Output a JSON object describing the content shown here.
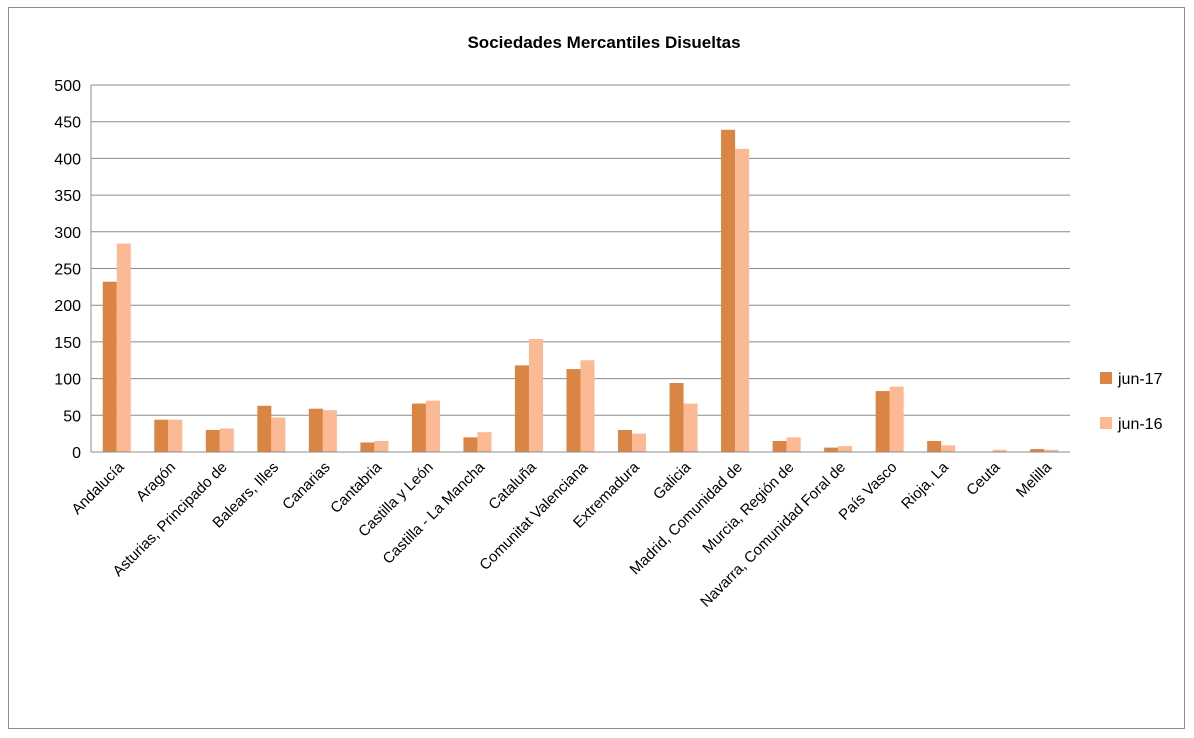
{
  "chart_data": {
    "type": "bar",
    "title": "Sociedades Mercantiles Disueltas",
    "xlabel": "",
    "ylabel": "",
    "ylim": [
      0,
      500
    ],
    "yticks": [
      0,
      50,
      100,
      150,
      200,
      250,
      300,
      350,
      400,
      450,
      500
    ],
    "grid": true,
    "legend_position": "right",
    "categories": [
      "Andalucía",
      "Aragón",
      "Asturias, Principado de",
      "Balears, Illes",
      "Canarias",
      "Cantabria",
      "Castilla y León",
      "Castilla - La Mancha",
      "Cataluña",
      "Comunitat Valenciana",
      "Extremadura",
      "Galicia",
      "Madrid, Comunidad de",
      "Murcia, Región de",
      "Navarra, Comunidad Foral de",
      "País Vasco",
      "Rioja, La",
      "Ceuta",
      "Melilla"
    ],
    "series": [
      {
        "name": "jun-17",
        "color": "#DA8544",
        "values": [
          232,
          44,
          30,
          63,
          59,
          13,
          66,
          20,
          118,
          113,
          30,
          94,
          439,
          15,
          6,
          83,
          15,
          0,
          4
        ]
      },
      {
        "name": "jun-16",
        "color": "#FBB994",
        "values": [
          284,
          44,
          32,
          47,
          57,
          15,
          70,
          27,
          154,
          125,
          25,
          66,
          413,
          20,
          8,
          89,
          9,
          3,
          3
        ]
      }
    ]
  }
}
